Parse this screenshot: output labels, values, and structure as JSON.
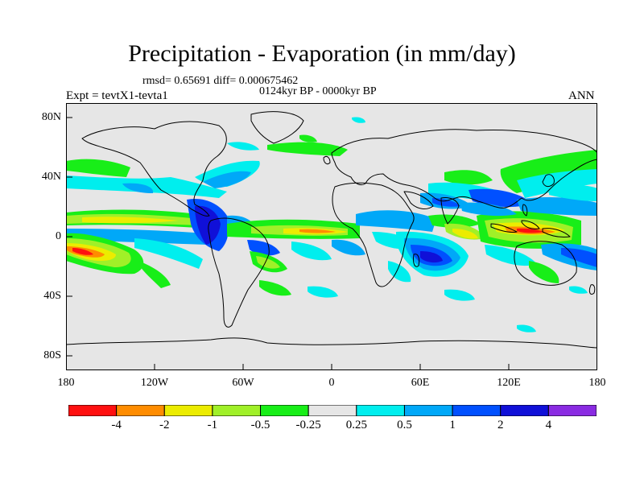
{
  "header": {
    "title": "Precipitation - Evaporation (in mm/day)",
    "stats": "rmsd= 0.65691 diff= 0.000675462",
    "period": "0124kyr BP - 0000kyr BP",
    "expt": "Expt = tevtX1-tevta1",
    "season": "ANN"
  },
  "axes": {
    "y_ticks": [
      "80N",
      "40N",
      "0",
      "40S",
      "80S"
    ],
    "x_ticks": [
      "180",
      "120W",
      "60W",
      "0",
      "60E",
      "120E",
      "180"
    ]
  },
  "colorbar": {
    "labels": [
      "-4",
      "-2",
      "-1",
      "-0.5",
      "-0.25",
      "0.25",
      "0.5",
      "1",
      "2",
      "4"
    ],
    "colors": [
      "#ff1010",
      "#ff8c00",
      "#ecec00",
      "#a0f028",
      "#18ee18",
      "#e6e6e6",
      "#00eeee",
      "#00a8f8",
      "#0050ff",
      "#1010d8",
      "#8a2be2"
    ]
  },
  "map": {
    "projection": "cylindrical-equidistant",
    "lon_range": [
      -180,
      180
    ],
    "lat_range": [
      -90,
      90
    ],
    "background_color": "#e6e6e6"
  }
}
